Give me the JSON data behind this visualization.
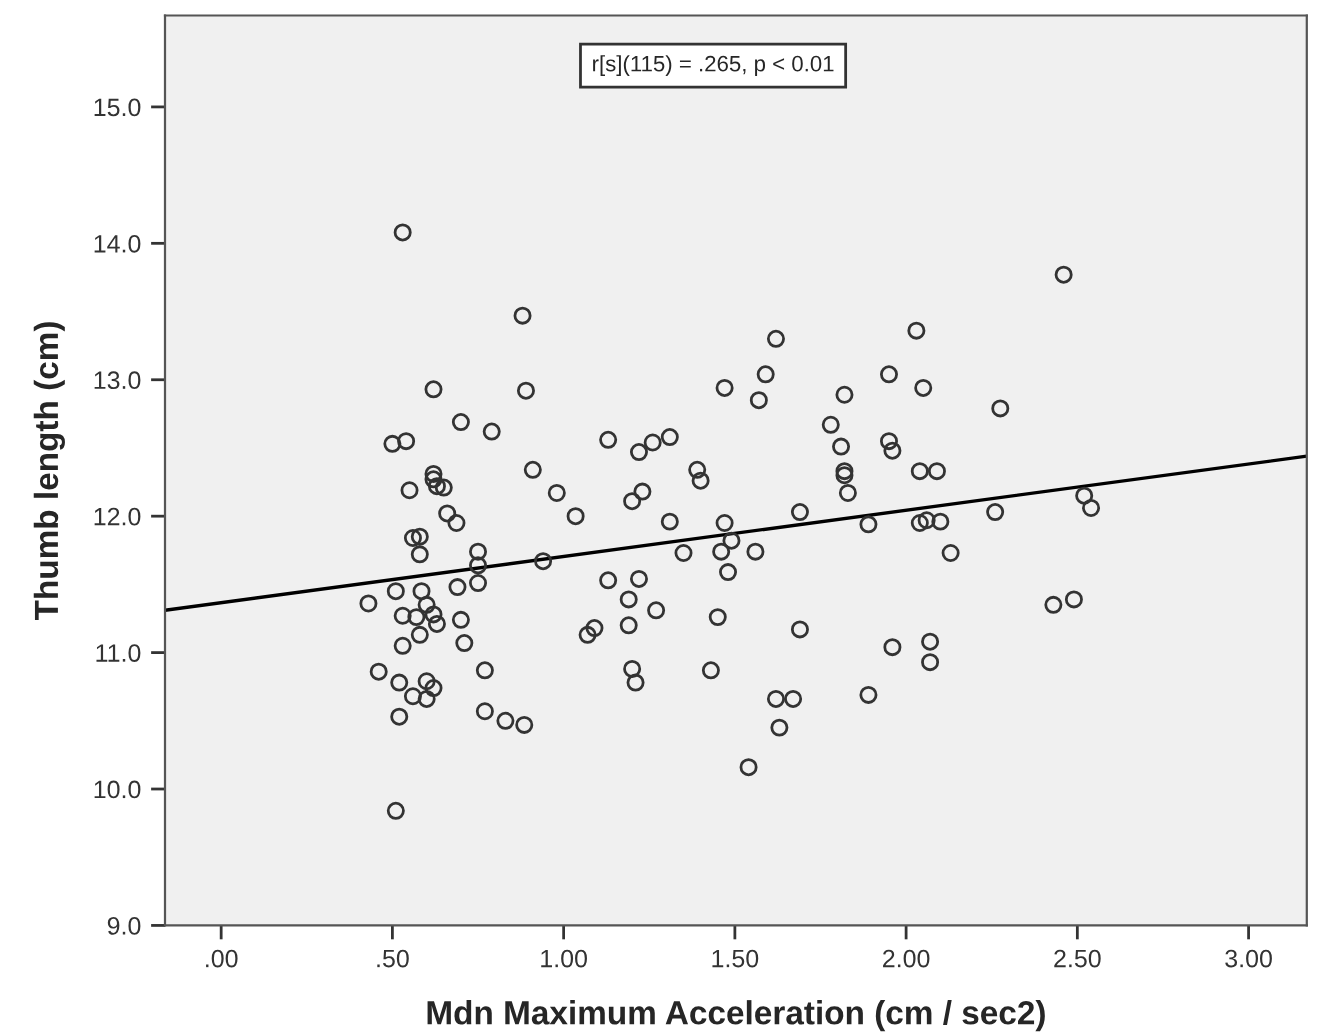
{
  "chart_data": {
    "type": "scatter",
    "xlabel": "Mdn Maximum Acceleration (cm / sec2)",
    "ylabel": "Thumb length (cm)",
    "annotations": [
      "r[s](115) = .265, p < 0.01"
    ],
    "xlim": [
      -0.164,
      3.17
    ],
    "ylim": [
      9.0,
      15.67
    ],
    "xticks": [
      {
        "value": 0,
        "label": ".00"
      },
      {
        "value": 0.5,
        "label": ".50"
      },
      {
        "value": 1,
        "label": "1.00"
      },
      {
        "value": 1.5,
        "label": "1.50"
      },
      {
        "value": 2,
        "label": "2.00"
      },
      {
        "value": 2.5,
        "label": "2.50"
      },
      {
        "value": 3,
        "label": "3.00"
      }
    ],
    "yticks": [
      {
        "value": 9,
        "label": "9.0"
      },
      {
        "value": 10,
        "label": "10.0"
      },
      {
        "value": 11,
        "label": "11.0"
      },
      {
        "value": 12,
        "label": "12.0"
      },
      {
        "value": 13,
        "label": "13.0"
      },
      {
        "value": 14,
        "label": "14.0"
      },
      {
        "value": 15,
        "label": "15.0"
      }
    ],
    "grid": false,
    "legend": false,
    "marker": "circle",
    "series": [
      {
        "color": "#333333",
        "x": [
          0.53,
          0.88,
          0.62,
          0.89,
          0.7,
          0.79,
          0.5,
          0.54,
          1.13,
          1.22,
          1.26,
          0.62,
          0.62,
          0.91,
          0.55,
          0.65,
          0.63,
          0.98,
          1.2,
          1.23,
          0.66,
          1.035,
          0.687,
          0.56,
          0.58,
          0.58,
          0.75,
          0.75,
          0.75,
          0.69,
          0.94,
          0.43,
          0.51,
          0.585,
          0.6,
          0.53,
          0.57,
          0.62,
          0.63,
          0.58,
          0.7,
          0.71,
          0.53,
          0.46,
          0.52,
          0.6,
          0.62,
          0.56,
          0.6,
          0.77,
          0.52,
          0.77,
          0.83,
          0.885,
          0.51,
          1.13,
          1.22,
          1.19,
          1.27,
          1.07,
          1.09,
          1.19,
          1.2,
          1.21,
          2.46,
          2.03,
          1.62,
          1.59,
          1.47,
          1.57,
          1.95,
          2.05,
          1.82,
          2.275,
          1.78,
          1.31,
          1.81,
          1.95,
          1.96,
          1.39,
          1.4,
          1.82,
          1.82,
          1.83,
          2.04,
          2.09,
          2.52,
          2.54,
          2.26,
          1.69,
          1.31,
          1.47,
          1.49,
          1.46,
          1.35,
          1.56,
          1.48,
          1.89,
          2.04,
          2.06,
          2.1,
          2.13,
          1.45,
          1.69,
          1.43,
          1.96,
          2.07,
          2.07,
          2.43,
          2.49,
          1.62,
          1.67,
          1.89,
          1.63,
          1.54
        ],
        "values": [
          14.08,
          13.47,
          12.93,
          12.92,
          12.69,
          12.62,
          12.53,
          12.55,
          12.56,
          12.47,
          12.54,
          12.31,
          12.27,
          12.34,
          12.19,
          12.21,
          12.22,
          12.17,
          12.11,
          12.18,
          12.02,
          12.0,
          11.95,
          11.84,
          11.85,
          11.72,
          11.74,
          11.64,
          11.51,
          11.48,
          11.67,
          11.36,
          11.45,
          11.45,
          11.35,
          11.27,
          11.26,
          11.28,
          11.21,
          11.13,
          11.24,
          11.07,
          11.05,
          10.86,
          10.78,
          10.79,
          10.74,
          10.68,
          10.66,
          10.87,
          10.53,
          10.57,
          10.5,
          10.47,
          9.84,
          11.53,
          11.54,
          11.39,
          11.31,
          11.13,
          11.18,
          11.2,
          10.88,
          10.78,
          13.77,
          13.36,
          13.3,
          13.04,
          12.94,
          12.85,
          13.04,
          12.94,
          12.89,
          12.79,
          12.67,
          12.58,
          12.51,
          12.55,
          12.48,
          12.34,
          12.26,
          12.33,
          12.3,
          12.17,
          12.33,
          12.33,
          12.15,
          12.06,
          12.03,
          12.03,
          11.96,
          11.95,
          11.82,
          11.74,
          11.73,
          11.74,
          11.59,
          11.94,
          11.95,
          11.97,
          11.96,
          11.73,
          11.26,
          11.17,
          10.87,
          11.04,
          11.08,
          10.93,
          11.35,
          11.39,
          10.66,
          10.66,
          10.69,
          10.45,
          10.16
        ]
      },
      {
        "type": "line",
        "color": "#000000",
        "marker": "none",
        "line_style": "solid",
        "x": [
          -0.164,
          3.17
        ],
        "values": [
          11.31,
          12.44
        ]
      }
    ]
  }
}
